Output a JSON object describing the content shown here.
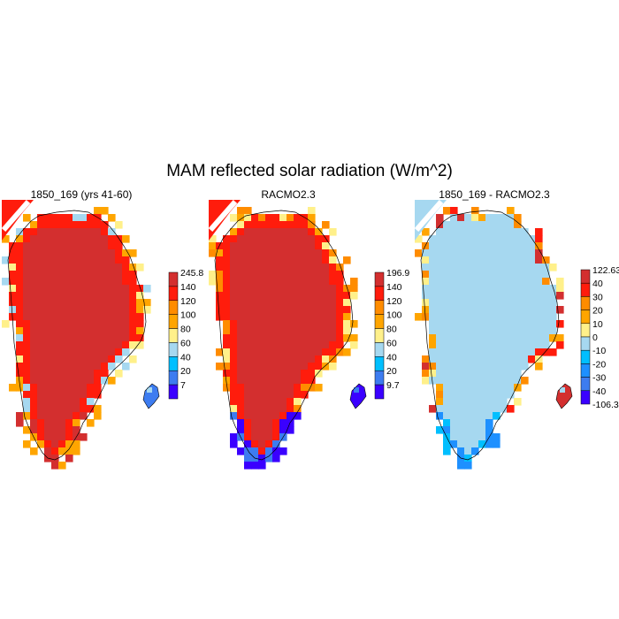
{
  "title": "MAM reflected solar radiation (W/m^2)",
  "chart_data": [
    {
      "type": "heatmap",
      "title": "1850_169 (yrs 41-60)",
      "colorbar": {
        "labels": [
          "245.8",
          "140",
          "120",
          "100",
          "80",
          "60",
          "40",
          "20",
          "7"
        ],
        "colors": [
          "#d32f2f",
          "#ff1c0c",
          "#ff8c00",
          "#ffa500",
          "#fff08a",
          "#a6d8f0",
          "#00bfff",
          "#3d7cf0",
          "#3a00ff"
        ]
      },
      "map": {
        "interior_color": "#d32f2f",
        "edge_color": "#ff1c0c",
        "fringe_colors": [
          "#ffa500",
          "#fff08a",
          "#a6d8f0"
        ],
        "bottom_colors": [
          "#ffa500",
          "#d32f2f"
        ],
        "island_colors": [
          "#3d7cf0",
          "#a6d8f0"
        ]
      }
    },
    {
      "type": "heatmap",
      "title": "RACMO2.3",
      "colorbar": {
        "labels": [
          "196.9",
          "140",
          "120",
          "100",
          "80",
          "60",
          "40",
          "20",
          "9.7"
        ],
        "colors": [
          "#d32f2f",
          "#ff1c0c",
          "#ff8c00",
          "#ffa500",
          "#fff08a",
          "#a6d8f0",
          "#00bfff",
          "#3d7cf0",
          "#3a00ff"
        ]
      },
      "map": {
        "interior_color": "#d32f2f",
        "edge_color": "#ff1c0c",
        "fringe_colors": [
          "#ffa500",
          "#fff08a",
          "#ff8c00"
        ],
        "bottom_colors": [
          "#3a00ff",
          "#3d7cf0"
        ],
        "island_colors": [
          "#3a00ff",
          "#3d7cf0"
        ]
      }
    },
    {
      "type": "heatmap",
      "title": "1850_169 - RACMO2.3",
      "colorbar": {
        "labels": [
          "122.63",
          "40",
          "30",
          "20",
          "10",
          "0",
          "-10",
          "-20",
          "-30",
          "-40",
          "-106.3"
        ],
        "colors": [
          "#d32f2f",
          "#ff1c0c",
          "#ff8c00",
          "#ffa500",
          "#fff08a",
          "#a6d8f0",
          "#00bfff",
          "#1e90ff",
          "#3d7cf0",
          "#3a00ff"
        ]
      },
      "map": {
        "interior_color": "#a6d8f0",
        "edge_color": "#a6d8f0",
        "fringe_colors": [
          "#ffa500",
          "#d32f2f",
          "#fff08a",
          "#ff8c00",
          "#ff1c0c"
        ],
        "bottom_colors": [
          "#00bfff",
          "#1e90ff"
        ],
        "island_colors": [
          "#d32f2f",
          "#a6d8f0"
        ]
      }
    }
  ]
}
